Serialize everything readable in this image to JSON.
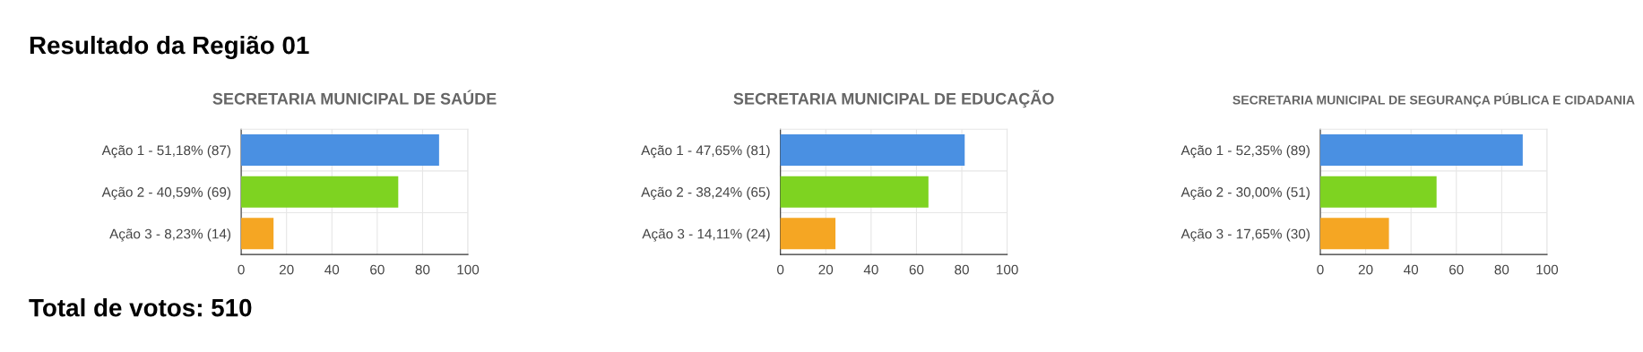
{
  "chart_data": [
    {
      "type": "other",
      "title": "Resultado da Região 01",
      "annotations": [
        "Total de votos: 510"
      ]
    },
    {
      "type": "bar",
      "orientation": "horizontal",
      "title": "SECRETARIA MUNICIPAL DE SAÚDE",
      "categories": [
        "Ação 1 - 51,18% (87)",
        "Ação 2 - 40,59% (69)",
        "Ação 3 - 8,23% (14)"
      ],
      "values": [
        87,
        69,
        14
      ],
      "colors": [
        "#4a90e2",
        "#7ed321",
        "#f5a623"
      ],
      "xlim": [
        0,
        100
      ],
      "xticks": [
        0,
        20,
        40,
        60,
        80,
        100
      ],
      "grid": true
    },
    {
      "type": "bar",
      "orientation": "horizontal",
      "title": "SECRETARIA MUNICIPAL DE EDUCAÇÃO",
      "categories": [
        "Ação 1 - 47,65% (81)",
        "Ação 2 - 38,24% (65)",
        "Ação 3 - 14,11% (24)"
      ],
      "values": [
        81,
        65,
        24
      ],
      "colors": [
        "#4a90e2",
        "#7ed321",
        "#f5a623"
      ],
      "xlim": [
        0,
        100
      ],
      "xticks": [
        0,
        20,
        40,
        60,
        80,
        100
      ],
      "grid": true
    },
    {
      "type": "bar",
      "orientation": "horizontal",
      "title": "SECRETARIA MUNICIPAL DE SEGURANÇA PÚBLICA E CIDADANIA",
      "categories": [
        "Ação 1 - 52,35% (89)",
        "Ação 2 - 30,00% (51)",
        "Ação 3 - 17,65% (30)"
      ],
      "values": [
        89,
        51,
        30
      ],
      "colors": [
        "#4a90e2",
        "#7ed321",
        "#f5a623"
      ],
      "xlim": [
        0,
        100
      ],
      "xticks": [
        0,
        20,
        40,
        60,
        80,
        100
      ],
      "grid": true
    }
  ]
}
